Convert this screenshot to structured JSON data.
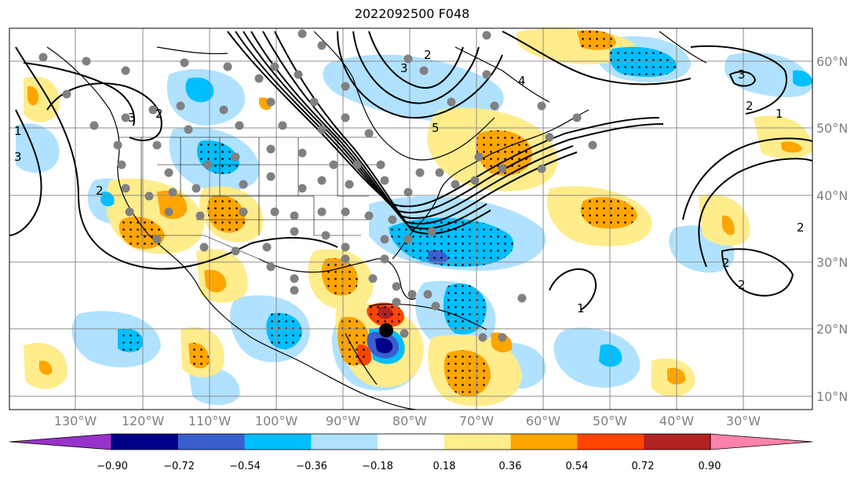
{
  "title": "2022092500 F048",
  "lat_labels": [
    "60°N",
    "50°N",
    "40°N",
    "30°N",
    "20°N",
    "10°N"
  ],
  "lon_labels": [
    "130°W",
    "120°W",
    "110°W",
    "100°W",
    "90°W",
    "80°W",
    "70°W",
    "60°W",
    "50°W",
    "40°W",
    "30°W"
  ],
  "colorbar": {
    "ticks": [
      "−0.90",
      "−0.72",
      "−0.54",
      "−0.36",
      "−0.18",
      "0.18",
      "0.36",
      "0.54",
      "0.72",
      "0.90"
    ],
    "colors": [
      "#9932cc",
      "#00008b",
      "#3a5fcd",
      "#00bfff",
      "#b0e2ff",
      "#ffffff",
      "#ffec8b",
      "#ffa500",
      "#ff4500",
      "#b22222",
      "#ff82ab"
    ]
  },
  "contour_labels": [
    "3",
    "2",
    "1",
    "3",
    "2",
    "5",
    "4",
    "3",
    "2",
    "1",
    "3",
    "2",
    "2",
    "1",
    "2",
    "2"
  ]
}
